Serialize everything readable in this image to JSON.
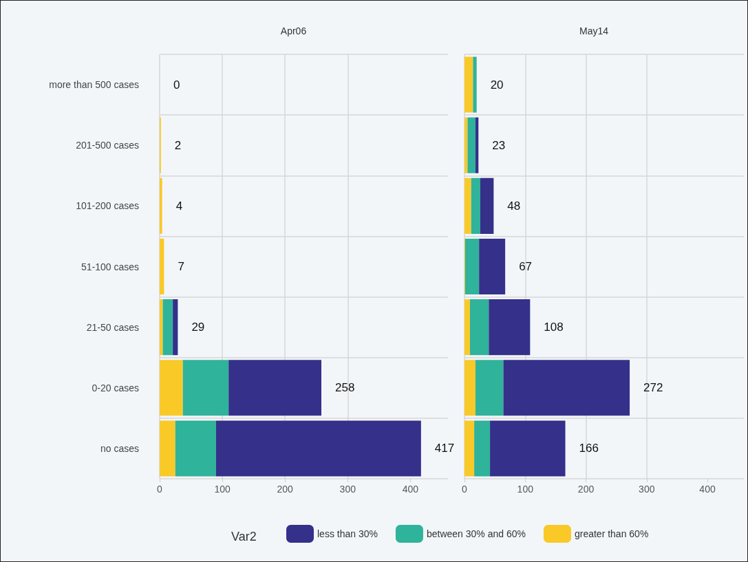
{
  "chart_data": [
    {
      "type": "bar",
      "title": "Apr06",
      "orientation": "horizontal",
      "stacked": true,
      "categories": [
        "more than 500 cases",
        "201-500 cases",
        "101-200 cases",
        "51-100 cases",
        "21-50 cases",
        "0-20 cases",
        "no cases"
      ],
      "series": [
        {
          "name": "greater than 60%",
          "color": "#f9c928",
          "values": [
            0,
            2,
            4,
            7,
            5,
            37,
            25
          ]
        },
        {
          "name": "between 30% and 60%",
          "color": "#2fb39a",
          "values": [
            0,
            0,
            0,
            0,
            16,
            73,
            65
          ]
        },
        {
          "name": "less than 30%",
          "color": "#35308a",
          "values": [
            0,
            0,
            0,
            0,
            8,
            148,
            327
          ]
        }
      ],
      "totals": [
        "0",
        "2",
        "4",
        "7",
        "29",
        "258",
        "417"
      ],
      "xlim": [
        0,
        460
      ],
      "xticks": [
        0,
        100,
        200,
        300,
        400
      ],
      "grid": true,
      "legend": "bottom",
      "legend_title": "Var2"
    },
    {
      "type": "bar",
      "title": "May14",
      "orientation": "horizontal",
      "stacked": true,
      "categories": [
        "more than 500 cases",
        "201-500 cases",
        "101-200 cases",
        "51-100 cases",
        "21-50 cases",
        "0-20 cases",
        "no cases"
      ],
      "series": [
        {
          "name": "greater than 60%",
          "color": "#f9c928",
          "values": [
            14,
            5,
            11,
            1,
            9,
            18,
            16
          ]
        },
        {
          "name": "between 30% and 60%",
          "color": "#2fb39a",
          "values": [
            6,
            13,
            15,
            23,
            31,
            46,
            26
          ]
        },
        {
          "name": "less than 30%",
          "color": "#35308a",
          "values": [
            0,
            5,
            22,
            43,
            68,
            208,
            124
          ]
        }
      ],
      "totals": [
        "20",
        "23",
        "48",
        "67",
        "108",
        "272",
        "166"
      ],
      "xlim": [
        0,
        460
      ],
      "xticks": [
        0,
        100,
        200,
        300,
        400
      ],
      "grid": true,
      "tick_labels": "x"
    }
  ]
}
